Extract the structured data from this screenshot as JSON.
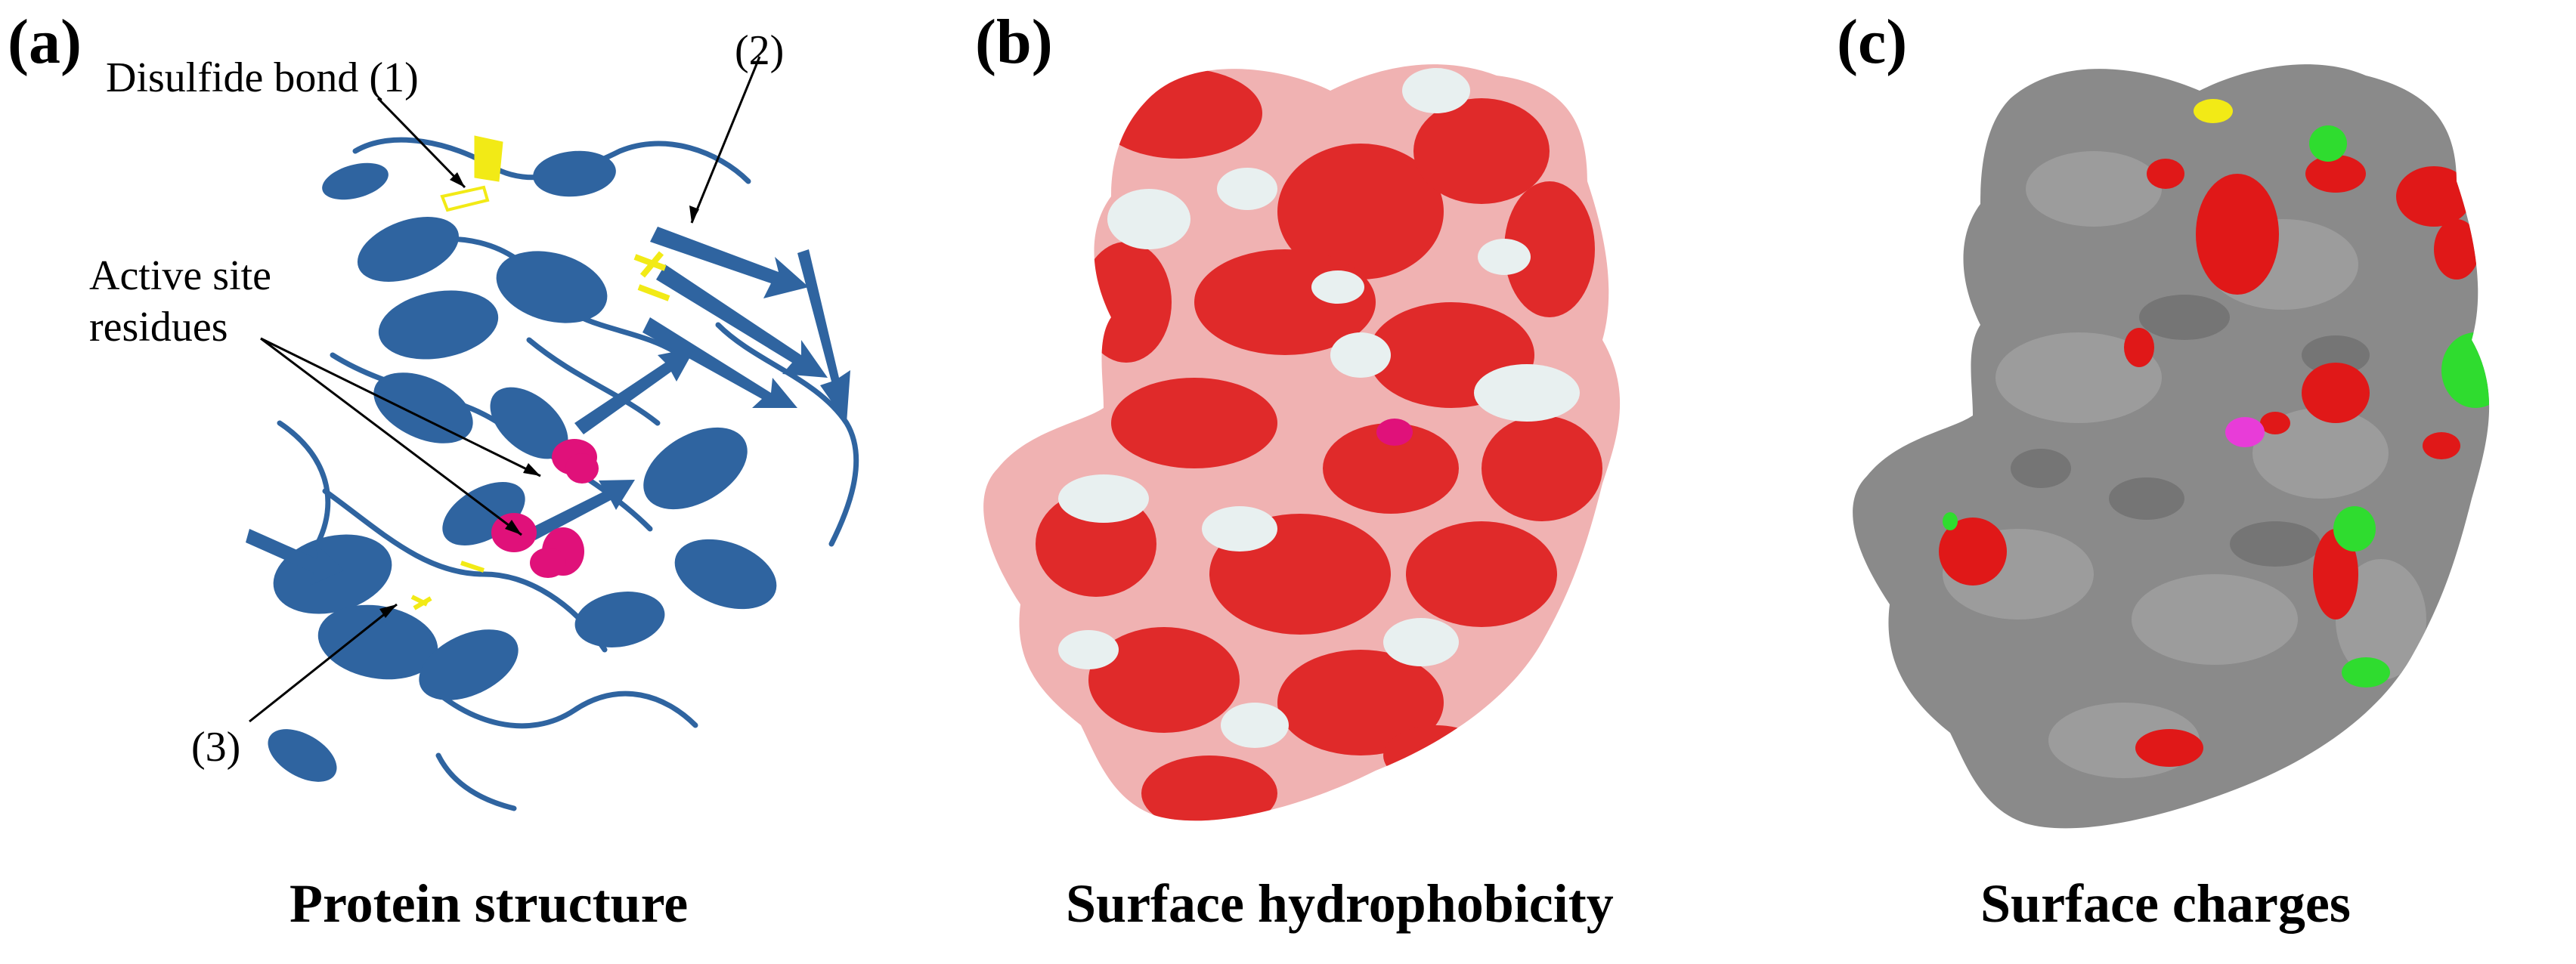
{
  "panels": {
    "a": {
      "label": "(a)",
      "caption": "Protein structure",
      "annotations": {
        "disulfide": "Disulfide bond (1)",
        "site_2": "(2)",
        "active_line1": "Active site",
        "active_line2": "residues",
        "site_3": "(3)"
      }
    },
    "b": {
      "label": "(b)",
      "caption": "Surface hydrophobicity"
    },
    "c": {
      "label": "(c)",
      "caption": "Surface charges"
    }
  },
  "colors": {
    "ribbon": "#2f64a0",
    "disulfide": "#f2ea16",
    "active_site": "#e0117a",
    "hydrophobic": "#e02a2a",
    "intermediate": "#f0b2b2",
    "hydrophilic": "#e8f0f0",
    "surface_neutral": "#8a8a8a",
    "negative_charge": "#e01818",
    "positive_charge": "#2fdc2f"
  }
}
